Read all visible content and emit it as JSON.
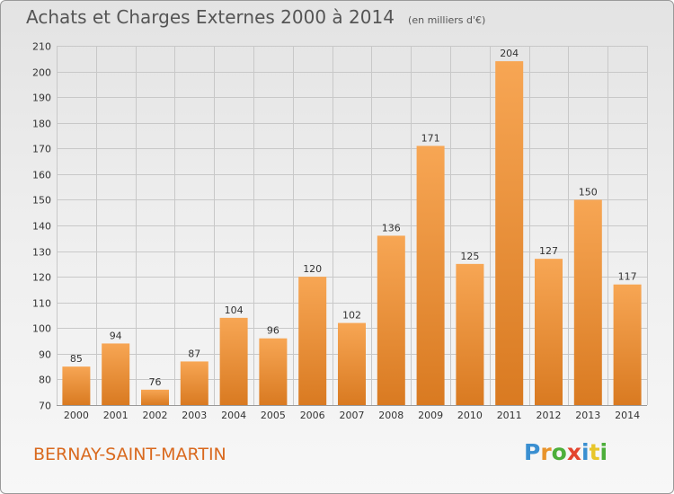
{
  "title": "Achats et Charges Externes 2000 à 2014",
  "unit": "(en milliers d'€)",
  "commune": "BERNAY-SAINT-MARTIN",
  "logo": {
    "text": "Proxiti",
    "letters": [
      {
        "ch": "P",
        "color": "#3a8fd1"
      },
      {
        "ch": "r",
        "color": "#e8932a"
      },
      {
        "ch": "o",
        "color": "#4caf3a"
      },
      {
        "ch": "x",
        "color": "#e3452f"
      },
      {
        "ch": "i",
        "color": "#3a8fd1"
      },
      {
        "ch": "t",
        "color": "#e8c62a"
      },
      {
        "ch": "i",
        "color": "#4caf3a"
      }
    ]
  },
  "colors": {
    "bar_light": "#f7a654",
    "bar_dark": "#d97a21",
    "grid": "#c8c8c8",
    "axis_text": "#333333",
    "commune": "#d9691e"
  },
  "chart_data": {
    "type": "bar",
    "categories": [
      "2000",
      "2001",
      "2002",
      "2003",
      "2004",
      "2005",
      "2006",
      "2007",
      "2008",
      "2009",
      "2010",
      "2011",
      "2012",
      "2013",
      "2014"
    ],
    "values": [
      85,
      94,
      76,
      87,
      104,
      96,
      120,
      102,
      136,
      171,
      125,
      204,
      127,
      150,
      117
    ],
    "ylim": [
      70,
      210
    ],
    "yticks": [
      70,
      80,
      90,
      100,
      110,
      120,
      130,
      140,
      150,
      160,
      170,
      180,
      190,
      200,
      210
    ],
    "grid": true,
    "legend": "none"
  }
}
